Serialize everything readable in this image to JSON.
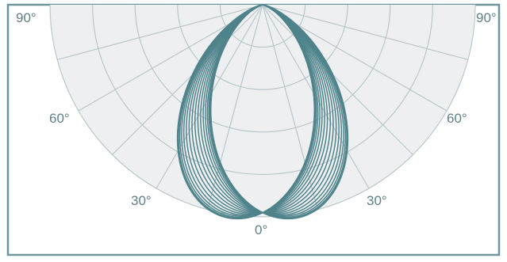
{
  "diagram": {
    "type": "polar-intensity-distribution",
    "colors": {
      "frame": "#6e969d",
      "grid": "#b4c4c8",
      "background_disc": "#eeeff0",
      "curve": "#4f838b",
      "label": "#5f7f86"
    },
    "angle_labels": {
      "top_left": "90°",
      "top_right": "90°",
      "mid_left": "60°",
      "mid_right": "60°",
      "low_left": "30°",
      "low_right": "30°",
      "bottom": "0°"
    },
    "ring_count": 5,
    "spoke_angles_deg": [
      15,
      30,
      45,
      60,
      75
    ],
    "curve": {
      "shape": "narrow-beam",
      "beam_exponent": 3.0,
      "lateral_tilt": 0.5,
      "family_count": 19
    }
  }
}
